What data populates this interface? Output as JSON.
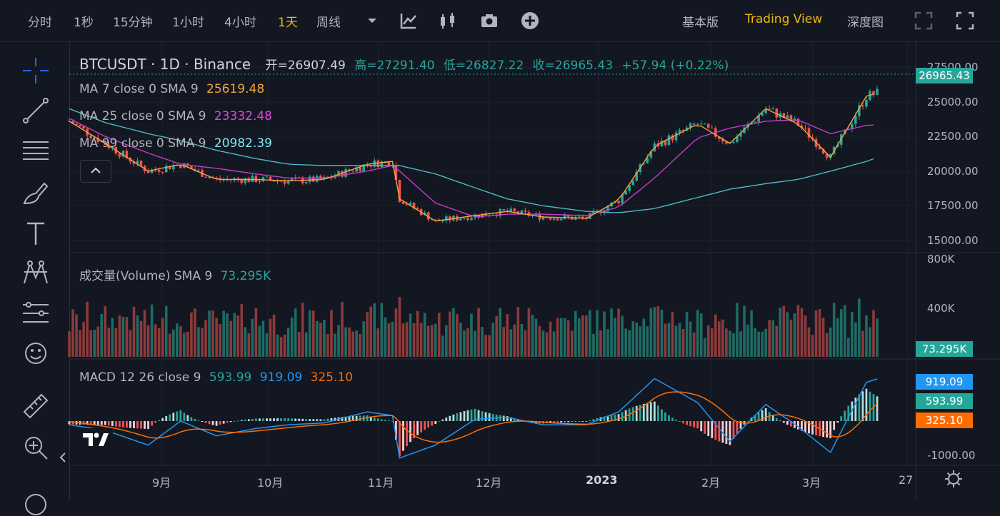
{
  "toolbar": {
    "intervals": [
      "分时",
      "1秒",
      "15分钟",
      "1小时",
      "4小时",
      "1天",
      "周线"
    ],
    "active_interval": "1天",
    "views": [
      "基本版",
      "Trading View",
      "深度图"
    ],
    "active_view": "Trading View"
  },
  "header": {
    "symbol": "BTCUSDT · 1D · Binance",
    "ohlc": {
      "open": "开=26907.49",
      "high": "高=27291.40",
      "low": "低=26827.22",
      "close": "收=26965.43",
      "change": "+57.94 (+0.22%)"
    }
  },
  "indicators": {
    "ma7": {
      "label": "MA 7 close 0 SMA 9",
      "value": "25619.48",
      "color": "#f7a43b"
    },
    "ma25": {
      "label": "MA 25 close 0 SMA 9",
      "value": "23332.48",
      "color": "#d84bd8"
    },
    "ma99": {
      "label": "MA 99 close 0 SMA 9",
      "value": "20982.39",
      "color": "#4fc3d9"
    },
    "volume": {
      "label": "成交量(Volume) SMA 9",
      "value": "73.295K"
    },
    "macd": {
      "label": "MACD 12 26 close 9",
      "hist": "593.99",
      "macd": "919.09",
      "signal": "325.10"
    }
  },
  "price_badge": "26965.43",
  "volume_badge": "73.295K",
  "macd_badges": {
    "macd": "919.09",
    "hist": "593.99",
    "signal": "325.10"
  },
  "price_axis": [
    "27500.00",
    "25000.00",
    "22500.00",
    "20000.00",
    "17500.00",
    "15000.00"
  ],
  "volume_axis": [
    "800K",
    "400K"
  ],
  "macd_axis": [
    "-1000.00"
  ],
  "time_axis": [
    "9月",
    "10月",
    "11月",
    "12月",
    "2023",
    "2月",
    "3月",
    "27"
  ],
  "colors": {
    "up": "#26a69a",
    "down": "#ef5350",
    "bg": "#131722",
    "accent": "#f0b90b"
  },
  "chart_data": {
    "type": "line",
    "title": "BTCUSDT · 1D · Binance",
    "x": [
      "2022-08-10",
      "2022-08-20",
      "2022-09-01",
      "2022-09-10",
      "2022-09-20",
      "2022-10-01",
      "2022-10-10",
      "2022-10-20",
      "2022-11-01",
      "2022-11-08",
      "2022-11-10",
      "2022-11-20",
      "2022-12-01",
      "2022-12-10",
      "2022-12-20",
      "2023-01-01",
      "2023-01-10",
      "2023-01-20",
      "2023-02-01",
      "2023-02-10",
      "2023-02-20",
      "2023-03-01",
      "2023-03-10",
      "2023-03-20",
      "2023-03-23"
    ],
    "series": [
      {
        "name": "MA 99",
        "values": [
          24500,
          23500,
          22700,
          22200,
          21500,
          20900,
          20500,
          20400,
          20400,
          20400,
          20400,
          19800,
          18800,
          18000,
          17500,
          17100,
          17000,
          17300,
          18100,
          18700,
          19100,
          19400,
          20000,
          20700,
          20982
        ]
      },
      {
        "name": "MA 25",
        "values": [
          23800,
          22500,
          21300,
          20500,
          20200,
          19800,
          19500,
          19500,
          20000,
          20400,
          20000,
          17700,
          16700,
          16900,
          16900,
          16800,
          17400,
          19500,
          22400,
          23100,
          23600,
          23700,
          22700,
          23300,
          23332
        ]
      },
      {
        "name": "MA 7",
        "values": [
          23600,
          22000,
          20000,
          20500,
          19400,
          19400,
          19300,
          19400,
          20500,
          20700,
          18000,
          16400,
          16800,
          17100,
          16700,
          16600,
          17900,
          21800,
          23400,
          22000,
          24500,
          23400,
          21000,
          25400,
          25619
        ]
      }
    ],
    "ylim": [
      15000,
      27500
    ],
    "volume_ylim": [
      0,
      800000
    ],
    "macd_ylim": [
      -1000,
      1300
    ]
  }
}
